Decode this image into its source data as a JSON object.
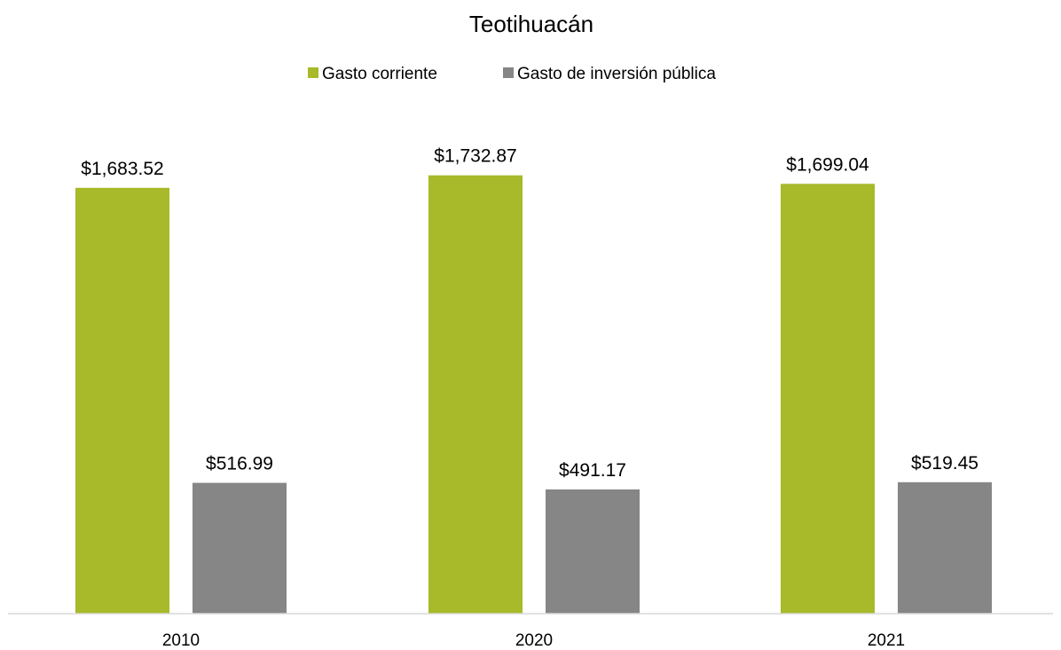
{
  "chart_data": {
    "type": "bar",
    "title": "Teotihuacán",
    "categories": [
      "2010",
      "2020",
      "2021"
    ],
    "series": [
      {
        "name": "Gasto corriente",
        "values": [
          1683.52,
          1732.87,
          1699.04
        ],
        "labels": [
          "$1,683.52",
          "$1,732.87",
          "$1,699.04"
        ],
        "color": "#A8B929"
      },
      {
        "name": "Gasto de inversión pública",
        "values": [
          516.99,
          491.17,
          519.45
        ],
        "labels": [
          "$516.99",
          "$491.17",
          "$519.45"
        ],
        "color": "#868686"
      }
    ],
    "ylim": [
      0,
      1900
    ],
    "grid": false,
    "legend_position": "top-center",
    "axis_color": "#D9D9D9"
  }
}
